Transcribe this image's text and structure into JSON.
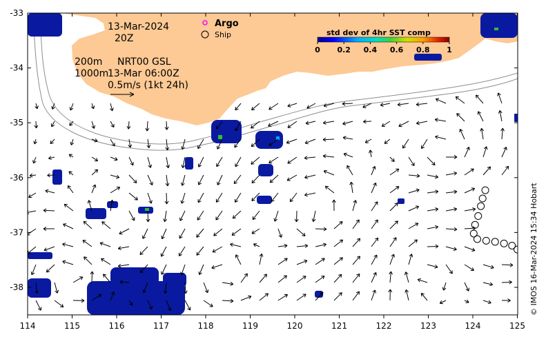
{
  "map": {
    "date": "13-Mar-2024",
    "time": "20Z",
    "depth_200": "200m",
    "depth_1000": "1000m",
    "product": "NRT00 GSL",
    "product_time": "13-Mar 06:00Z",
    "scale_label": "0.5m/s (1kt 24h)",
    "colors": {
      "land": "#fdc994",
      "ocean": "#ffffff",
      "contour": "#8c8c8c",
      "argo": "#ff00ff",
      "ship": "#000000"
    }
  },
  "legend": {
    "argo_label": "Argo",
    "ship_label": "Ship",
    "colorbar_title": "std dev of 4hr SST comp",
    "colorbar_ticks": [
      "0",
      "0.2",
      "0.4",
      "0.6",
      "0.8",
      "1"
    ]
  },
  "axes": {
    "lon_ticks": [
      "114",
      "115",
      "116",
      "117",
      "118",
      "119",
      "120",
      "121",
      "122",
      "123",
      "124",
      "125"
    ],
    "lat_ticks": [
      "-33",
      "-34",
      "-35",
      "-36",
      "-37",
      "-38"
    ]
  },
  "ship_track": [
    [
      124.28,
      -36.23
    ],
    [
      124.22,
      -36.38
    ],
    [
      124.18,
      -36.52
    ],
    [
      124.12,
      -36.7
    ],
    [
      124.05,
      -36.86
    ],
    [
      124.02,
      -37.02
    ],
    [
      124.1,
      -37.12
    ],
    [
      124.3,
      -37.15
    ],
    [
      124.5,
      -37.17
    ],
    [
      124.7,
      -37.2
    ],
    [
      124.88,
      -37.24
    ],
    [
      125.0,
      -37.31
    ]
  ],
  "credit": "© IMOS 16-Mar-2024 15:34 Hobart"
}
